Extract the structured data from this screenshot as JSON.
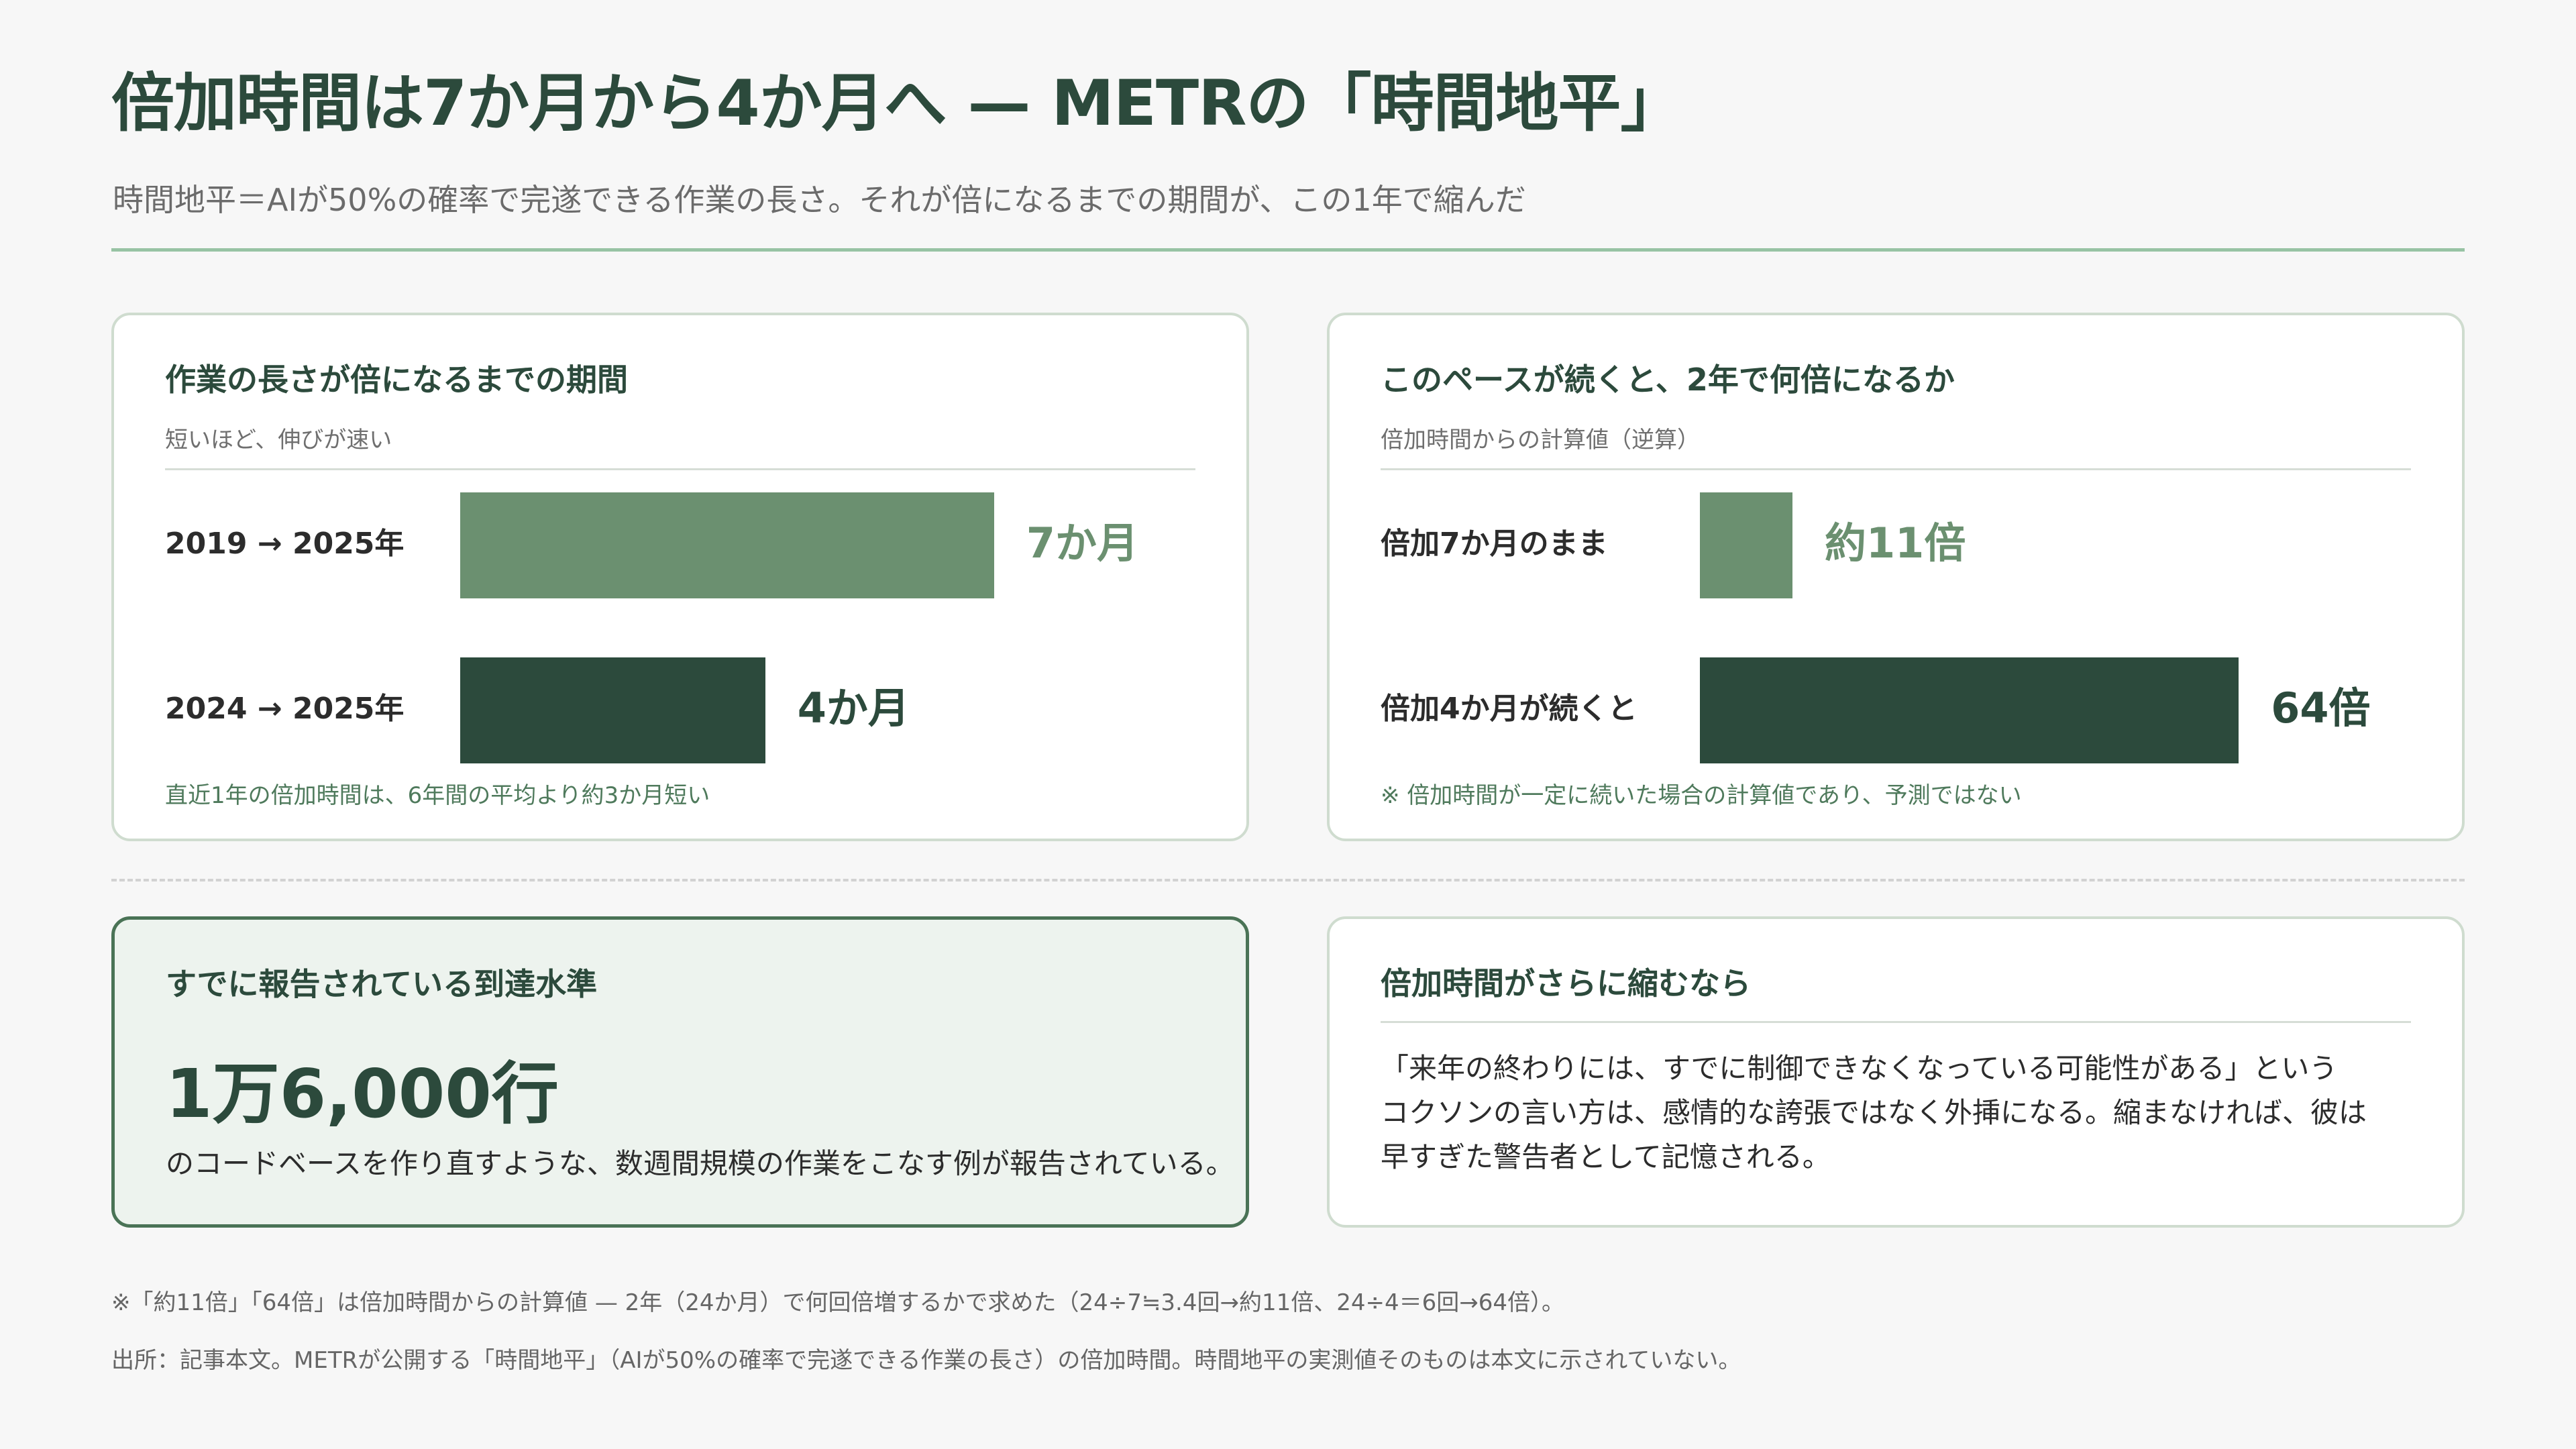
{
  "header": {
    "title": "倍加時間は7か月から4か月へ — METRの「時間地平」",
    "subtitle": "時間地平＝AIが50%の確率で完遂できる作業の長さ。それが倍になるまでの期間が、この1年で縮んだ"
  },
  "colors": {
    "light_bar": "#6b9070",
    "dark_bar": "#2c4a3c",
    "accent": "#98c3a4"
  },
  "chart_data": [
    {
      "type": "bar",
      "orientation": "horizontal",
      "title": "作業の長さが倍になるまでの期間",
      "subtitle": "短いほど、伸びが速い",
      "categories": [
        "2019 → 2025年",
        "2024 → 2025年"
      ],
      "values": [
        7,
        4
      ],
      "value_labels": [
        "7か月",
        "4か月"
      ],
      "note": "直近1年の倍加時間は、6年間の平均より約3か月短い"
    },
    {
      "type": "bar",
      "orientation": "horizontal",
      "title": "このペースが続くと、2年で何倍になるか",
      "subtitle": "倍加時間からの計算値（逆算）",
      "categories": [
        "倍加7か月のまま",
        "倍加4か月が続くと"
      ],
      "values": [
        11,
        64
      ],
      "value_labels": [
        "約11倍",
        "64倍"
      ],
      "note": "※ 倍加時間が一定に続いた場合の計算値であり、予測ではない"
    }
  ],
  "cards": {
    "reported": {
      "title": "すでに報告されている到達水準",
      "number": "1万6,000行",
      "text": "のコードベースを作り直すような、数週間規模の作業をこなす例が報告されている。"
    },
    "quote": {
      "title": "倍加時間がさらに縮むなら",
      "lines": [
        "「来年の終わりには、すでに制御できなくなっている可能性がある」という",
        "コクソンの言い方は、感情的な誇張ではなく外挿になる。縮まなければ、彼は",
        "早すぎた警告者として記憶される。"
      ]
    }
  },
  "footer": {
    "note": "※「約11倍」「64倍」は倍加時間からの計算値 — 2年（24か月）で何回倍増するかで求めた（24÷7≒3.4回→約11倍、24÷4＝6回→64倍）。",
    "source": "出所：記事本文。METRが公開する「時間地平」（AIが50%の確率で完遂できる作業の長さ）の倍加時間。時間地平の実測値そのものは本文に示されていない。"
  }
}
